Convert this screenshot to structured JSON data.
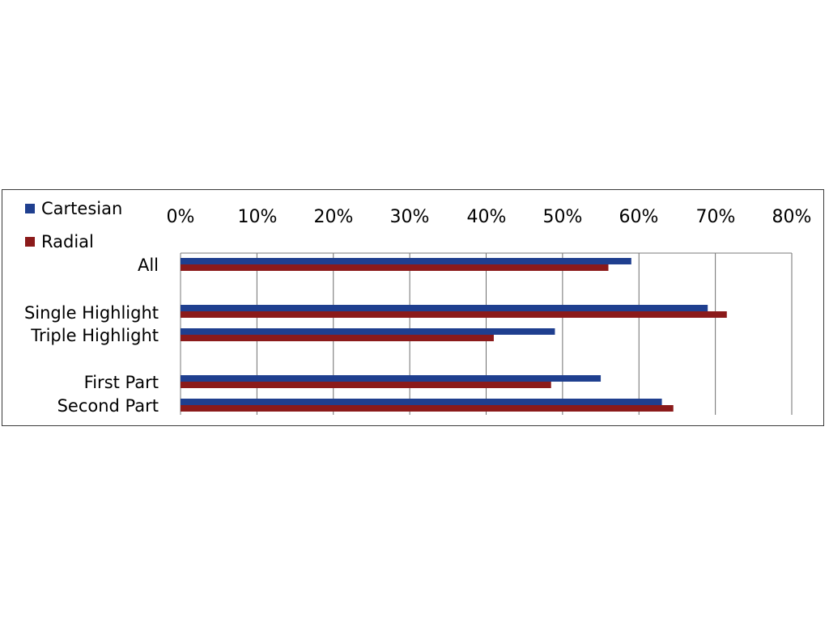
{
  "chart_data": {
    "type": "bar",
    "orientation": "horizontal",
    "categories": [
      "All",
      "Single Highlight",
      "Triple Highlight",
      "First Part",
      "Second Part"
    ],
    "series": [
      {
        "name": "Cartesian",
        "color": "#1f3f8f",
        "values": [
          59,
          69,
          49,
          55,
          63
        ]
      },
      {
        "name": "Radial",
        "color": "#8b1a1a",
        "values": [
          56,
          71.5,
          41,
          48.5,
          64.5
        ]
      }
    ],
    "xlim": [
      0,
      80
    ],
    "ticks": [
      "0%",
      "10%",
      "20%",
      "30%",
      "40%",
      "50%",
      "60%",
      "70%",
      "80%"
    ],
    "x_axis_position": "top",
    "grid": true,
    "legend_position": "top-left"
  }
}
